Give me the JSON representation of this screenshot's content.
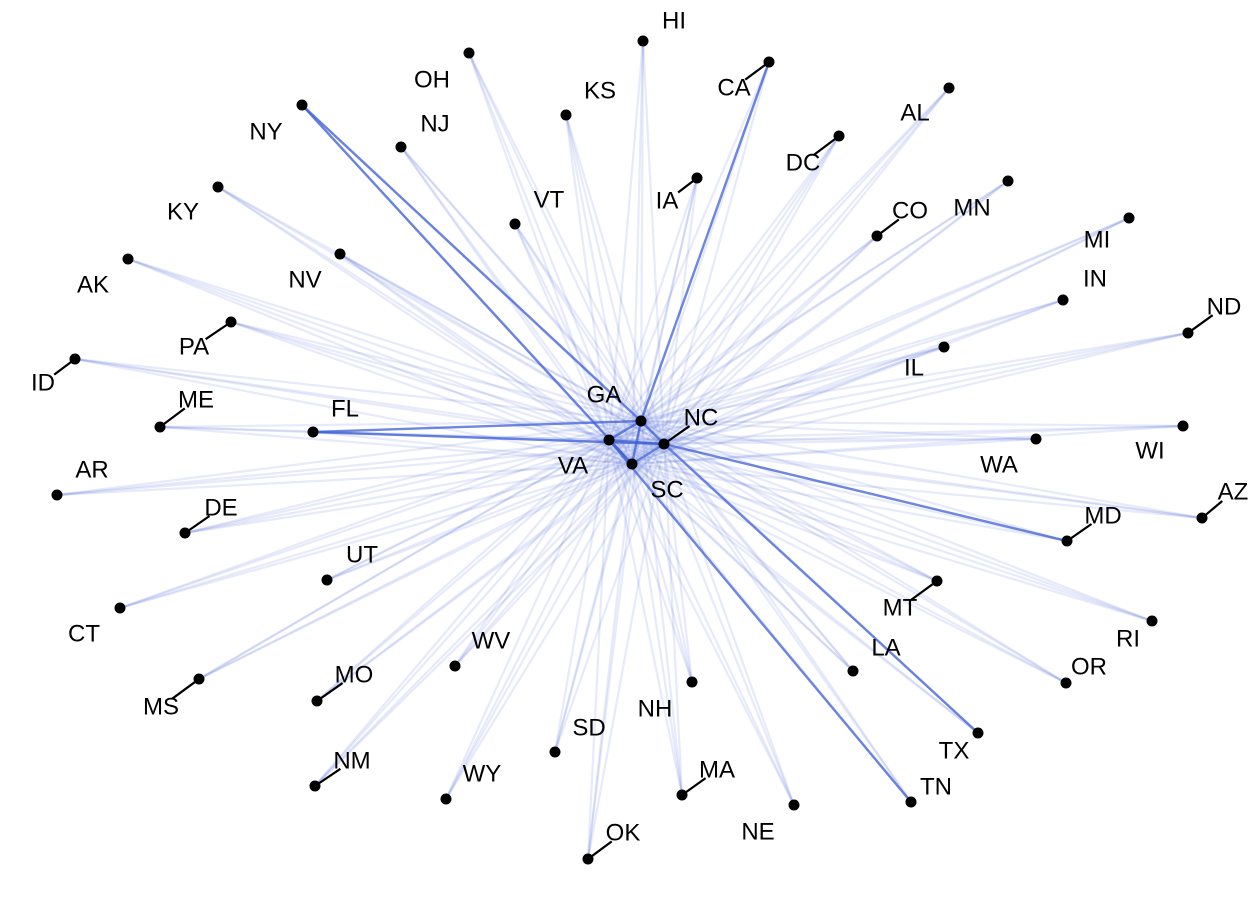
{
  "graph": {
    "node_color": "#000000",
    "edge_color": "#3e5fd6",
    "hubs": [
      "GA",
      "NC",
      "VA",
      "SC"
    ],
    "nodes": [
      {
        "id": "HI"
      },
      {
        "id": "OH"
      },
      {
        "id": "KS"
      },
      {
        "id": "CA"
      },
      {
        "id": "AL"
      },
      {
        "id": "NY"
      },
      {
        "id": "NJ"
      },
      {
        "id": "DC"
      },
      {
        "id": "IA"
      },
      {
        "id": "VT"
      },
      {
        "id": "KY"
      },
      {
        "id": "CO"
      },
      {
        "id": "MN"
      },
      {
        "id": "MI"
      },
      {
        "id": "AK"
      },
      {
        "id": "NV"
      },
      {
        "id": "IN"
      },
      {
        "id": "ND"
      },
      {
        "id": "PA"
      },
      {
        "id": "IL"
      },
      {
        "id": "ID"
      },
      {
        "id": "ME"
      },
      {
        "id": "FL"
      },
      {
        "id": "GA"
      },
      {
        "id": "NC"
      },
      {
        "id": "VA"
      },
      {
        "id": "SC"
      },
      {
        "id": "WI"
      },
      {
        "id": "WA"
      },
      {
        "id": "AR"
      },
      {
        "id": "AZ"
      },
      {
        "id": "MD"
      },
      {
        "id": "DE"
      },
      {
        "id": "UT"
      },
      {
        "id": "CT"
      },
      {
        "id": "MT"
      },
      {
        "id": "RI"
      },
      {
        "id": "LA"
      },
      {
        "id": "WV"
      },
      {
        "id": "MO"
      },
      {
        "id": "OR"
      },
      {
        "id": "MS"
      },
      {
        "id": "NH"
      },
      {
        "id": "SD"
      },
      {
        "id": "TX"
      },
      {
        "id": "NM"
      },
      {
        "id": "MA"
      },
      {
        "id": "WY"
      },
      {
        "id": "TN"
      },
      {
        "id": "NE"
      },
      {
        "id": "OK"
      }
    ],
    "strong_edges": [
      [
        "FL",
        "NC"
      ],
      [
        "FL",
        "GA"
      ],
      [
        "NY",
        "GA"
      ],
      [
        "NY",
        "SC"
      ],
      [
        "MD",
        "NC"
      ],
      [
        "TX",
        "NC"
      ],
      [
        "TN",
        "VA"
      ],
      [
        "CA",
        "GA"
      ],
      [
        "GA",
        "NC"
      ],
      [
        "VA",
        "NC"
      ],
      [
        "SC",
        "NC"
      ],
      [
        "GA",
        "SC"
      ],
      [
        "VA",
        "SC"
      ],
      [
        "GA",
        "VA"
      ]
    ]
  }
}
